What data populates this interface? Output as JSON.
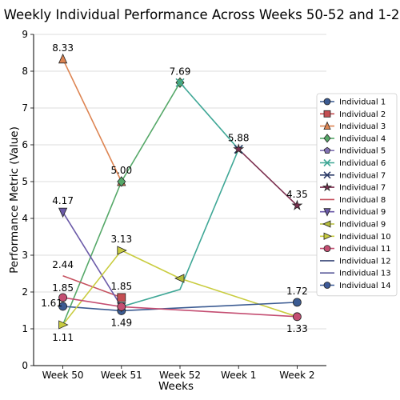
{
  "chart_data": {
    "type": "line",
    "title": "Weekly Individual Performance Across Weeks 50-52 and 1-2",
    "xlabel": "Weeks",
    "ylabel": "Performance Metric (Value)",
    "categories": [
      "Week 50",
      "Week 51",
      "Week 52",
      "Week 1",
      "Week 2"
    ],
    "ylim": [
      0,
      9
    ],
    "yticks": [
      "0",
      "1",
      "2",
      "3",
      "4",
      "5",
      "6",
      "7",
      "8",
      "9"
    ],
    "grid": "horizontal",
    "legend_position": "right",
    "series": [
      {
        "name": "Individual 1",
        "color": "#3b5b92",
        "marker": "circle",
        "values": [
          1.61,
          1.49,
          null,
          null,
          1.72
        ],
        "labels": [
          "1.61",
          "1.49",
          null,
          null,
          "1.72"
        ]
      },
      {
        "name": "Individual 2",
        "color": "#c44e52",
        "marker": "square",
        "values": [
          null,
          1.85,
          null,
          null,
          null
        ],
        "labels": [
          null,
          "1.85",
          null,
          null,
          null
        ]
      },
      {
        "name": "Individual 3",
        "color": "#dd8452",
        "marker": "triangle-up",
        "values": [
          8.33,
          5.0,
          null,
          null,
          null
        ],
        "labels": [
          "8.33",
          "5.00",
          null,
          null,
          null
        ]
      },
      {
        "name": "Individual 4",
        "color": "#55a868",
        "marker": "diamond",
        "values": [
          null,
          5.0,
          7.69,
          null,
          null
        ],
        "labels": [
          null,
          null,
          "7.69",
          null,
          null
        ]
      },
      {
        "name": "Individual 5",
        "color": "#8172b3",
        "marker": "pentagon",
        "values": [
          null,
          1.6,
          null,
          null,
          null
        ],
        "labels": [
          null,
          null,
          null,
          null,
          null
        ]
      },
      {
        "name": "Individual 6",
        "color": "#3fa796",
        "marker": "x",
        "values": [
          null,
          null,
          7.69,
          5.88,
          null
        ],
        "labels": [
          null,
          null,
          null,
          "5.88",
          null
        ]
      },
      {
        "name": "Individual 7",
        "color": "#2b3a67",
        "marker": "x",
        "values": [
          null,
          null,
          null,
          5.88,
          null
        ],
        "labels": [
          null,
          null,
          null,
          null,
          null
        ]
      },
      {
        "name": "Individual 7",
        "color": "#7b2f4f",
        "marker": "star",
        "values": [
          null,
          null,
          null,
          5.88,
          4.35
        ],
        "labels": [
          null,
          null,
          null,
          null,
          "4.35"
        ]
      },
      {
        "name": "Individual 8",
        "color": "#c5505e",
        "marker": "line",
        "values": [
          2.44,
          1.85,
          null,
          null,
          null
        ],
        "labels": [
          "2.44",
          null,
          null,
          null,
          null
        ]
      },
      {
        "name": "Individual 9",
        "color": "#6b5aa8",
        "marker": "triangle-down",
        "values": [
          4.17,
          1.6,
          null,
          null,
          null
        ],
        "labels": [
          "4.17",
          null,
          null,
          null,
          null
        ]
      },
      {
        "name": "Individual 9",
        "color": "#b5bd3a",
        "marker": "triangle-left",
        "values": [
          null,
          null,
          2.37,
          null,
          null
        ],
        "labels": [
          null,
          null,
          null,
          null,
          null
        ]
      },
      {
        "name": "Individual 10",
        "color": "#c9cc3f",
        "marker": "triangle-right",
        "values": [
          1.11,
          3.13,
          null,
          null,
          null
        ],
        "labels": [
          "1.11",
          "3.13",
          null,
          null,
          null
        ]
      },
      {
        "name": "Individual 11",
        "color": "#c44e72",
        "marker": "circle",
        "values": [
          1.85,
          1.6,
          null,
          null,
          1.33
        ],
        "labels": [
          "1.85",
          null,
          null,
          null,
          "1.33"
        ]
      },
      {
        "name": "Individual 12",
        "color": "#3b4a7a",
        "marker": "line",
        "values": [
          null,
          null,
          null,
          null,
          null
        ],
        "labels": [
          null,
          null,
          null,
          null,
          null
        ]
      },
      {
        "name": "Individual 13",
        "color": "#5a5a9a",
        "marker": "line",
        "values": [
          null,
          null,
          null,
          null,
          null
        ],
        "labels": [
          null,
          null,
          null,
          null,
          null
        ]
      },
      {
        "name": "Individual 14",
        "color": "#3d5a98",
        "marker": "circle",
        "values": [
          null,
          null,
          null,
          null,
          null
        ],
        "labels": [
          null,
          null,
          null,
          null,
          null
        ]
      }
    ],
    "extra_segments": [
      {
        "color": "#3fa796",
        "points": [
          [
            1,
            1.6
          ],
          [
            2,
            2.07
          ],
          [
            3,
            5.88
          ]
        ]
      },
      {
        "color": "#c9cc3f",
        "points": [
          [
            1,
            3.13
          ],
          [
            2,
            2.37
          ],
          [
            4,
            1.33
          ]
        ]
      },
      {
        "color": "#55a868",
        "points": [
          [
            0,
            1.11
          ],
          [
            1,
            5.0
          ]
        ]
      }
    ]
  }
}
